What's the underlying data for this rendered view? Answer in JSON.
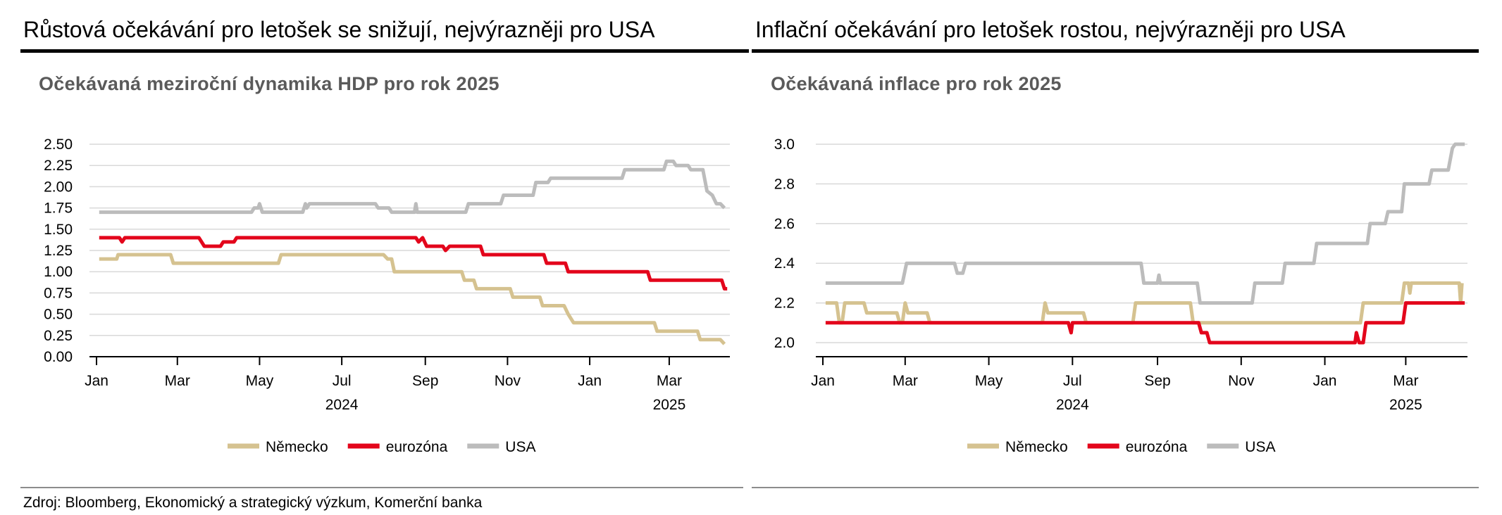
{
  "source": "Zdroj: Bloomberg, Ekonomický a strategický výzkum, Komerční banka",
  "colors": {
    "nemecko": "#d5c290",
    "eurozona": "#e3051b",
    "usa": "#bcbcbc",
    "grid": "#d9d9d9",
    "axis": "#000000"
  },
  "panels": [
    {
      "title": "Růstová očekávání pro letošek se snižují, nejvýrazněji pro USA",
      "subtitle": "Očekávaná meziroční dynamika HDP pro rok 2025"
    },
    {
      "title": "Inflační očekávání pro letošek rostou, nejvýrazněji pro USA",
      "subtitle": "Očekávaná inflace pro rok 2025"
    }
  ],
  "chart_data": [
    {
      "type": "line",
      "title": "Očekávaná meziroční dynamika HDP pro rok 2025",
      "xlabel": "",
      "ylabel": "",
      "x_range": [
        "2024-01-01",
        "2025-04-15"
      ],
      "x_tick_labels": [
        "Jan",
        "Mar",
        "May",
        "Jul",
        "Sep",
        "Nov",
        "Jan",
        "Mar"
      ],
      "year_labels": [
        "2024",
        "2025"
      ],
      "ylim": [
        0,
        2.5
      ],
      "y_ticks": [
        "0.00",
        "0.25",
        "0.50",
        "0.75",
        "1.00",
        "1.25",
        "1.50",
        "1.75",
        "2.00",
        "2.25",
        "2.50"
      ],
      "grid": true,
      "legend_position": "bottom",
      "series": [
        {
          "name": "Německo",
          "color_key": "nemecko",
          "points": [
            [
              "2024-01-03",
              1.15
            ],
            [
              "2024-01-16",
              1.15
            ],
            [
              "2024-01-17",
              1.2
            ],
            [
              "2024-02-25",
              1.2
            ],
            [
              "2024-02-27",
              1.1
            ],
            [
              "2024-05-15",
              1.1
            ],
            [
              "2024-05-17",
              1.2
            ],
            [
              "2024-08-01",
              1.2
            ],
            [
              "2024-08-04",
              1.15
            ],
            [
              "2024-08-07",
              1.15
            ],
            [
              "2024-08-09",
              1.0
            ],
            [
              "2024-09-28",
              1.0
            ],
            [
              "2024-09-30",
              0.9
            ],
            [
              "2024-10-07",
              0.9
            ],
            [
              "2024-10-09",
              0.8
            ],
            [
              "2024-11-03",
              0.8
            ],
            [
              "2024-11-05",
              0.7
            ],
            [
              "2024-11-25",
              0.7
            ],
            [
              "2024-11-27",
              0.6
            ],
            [
              "2024-12-13",
              0.6
            ],
            [
              "2024-12-16",
              0.5
            ],
            [
              "2024-12-20",
              0.4
            ],
            [
              "2025-02-18",
              0.4
            ],
            [
              "2025-02-20",
              0.3
            ],
            [
              "2025-03-22",
              0.3
            ],
            [
              "2025-03-24",
              0.2
            ],
            [
              "2025-04-08",
              0.2
            ],
            [
              "2025-04-11",
              0.15
            ]
          ]
        },
        {
          "name": "eurozóna",
          "color_key": "eurozona",
          "points": [
            [
              "2024-01-03",
              1.4
            ],
            [
              "2024-01-18",
              1.4
            ],
            [
              "2024-01-20",
              1.35
            ],
            [
              "2024-01-22",
              1.4
            ],
            [
              "2024-03-17",
              1.4
            ],
            [
              "2024-03-21",
              1.3
            ],
            [
              "2024-04-02",
              1.3
            ],
            [
              "2024-04-04",
              1.35
            ],
            [
              "2024-04-12",
              1.35
            ],
            [
              "2024-04-14",
              1.4
            ],
            [
              "2024-08-25",
              1.4
            ],
            [
              "2024-08-27",
              1.35
            ],
            [
              "2024-08-30",
              1.4
            ],
            [
              "2024-09-02",
              1.3
            ],
            [
              "2024-09-14",
              1.3
            ],
            [
              "2024-09-16",
              1.25
            ],
            [
              "2024-09-19",
              1.3
            ],
            [
              "2024-10-12",
              1.3
            ],
            [
              "2024-10-14",
              1.2
            ],
            [
              "2024-11-28",
              1.2
            ],
            [
              "2024-11-30",
              1.1
            ],
            [
              "2024-12-14",
              1.1
            ],
            [
              "2024-12-16",
              1.0
            ],
            [
              "2025-02-13",
              1.0
            ],
            [
              "2025-02-15",
              0.9
            ],
            [
              "2025-04-09",
              0.9
            ],
            [
              "2025-04-11",
              0.8
            ],
            [
              "2025-04-13",
              0.8
            ]
          ]
        },
        {
          "name": "USA",
          "color_key": "usa",
          "points": [
            [
              "2024-01-03",
              1.7
            ],
            [
              "2024-04-25",
              1.7
            ],
            [
              "2024-04-27",
              1.75
            ],
            [
              "2024-04-30",
              1.75
            ],
            [
              "2024-05-01",
              1.8
            ],
            [
              "2024-05-03",
              1.7
            ],
            [
              "2024-06-02",
              1.7
            ],
            [
              "2024-06-04",
              1.8
            ],
            [
              "2024-06-05",
              1.75
            ],
            [
              "2024-06-07",
              1.8
            ],
            [
              "2024-07-26",
              1.8
            ],
            [
              "2024-07-28",
              1.75
            ],
            [
              "2024-08-05",
              1.75
            ],
            [
              "2024-08-07",
              1.7
            ],
            [
              "2024-08-24",
              1.7
            ],
            [
              "2024-08-25",
              1.8
            ],
            [
              "2024-08-26",
              1.7
            ],
            [
              "2024-10-01",
              1.7
            ],
            [
              "2024-10-03",
              1.8
            ],
            [
              "2024-10-27",
              1.8
            ],
            [
              "2024-10-29",
              1.9
            ],
            [
              "2024-11-20",
              1.9
            ],
            [
              "2024-11-22",
              2.05
            ],
            [
              "2024-12-01",
              2.05
            ],
            [
              "2024-12-03",
              2.1
            ],
            [
              "2025-01-25",
              2.1
            ],
            [
              "2025-01-27",
              2.2
            ],
            [
              "2025-02-25",
              2.2
            ],
            [
              "2025-02-27",
              2.3
            ],
            [
              "2025-03-04",
              2.3
            ],
            [
              "2025-03-06",
              2.25
            ],
            [
              "2025-03-15",
              2.25
            ],
            [
              "2025-03-17",
              2.2
            ],
            [
              "2025-03-26",
              2.2
            ],
            [
              "2025-03-29",
              1.95
            ],
            [
              "2025-04-02",
              1.9
            ],
            [
              "2025-04-05",
              1.8
            ],
            [
              "2025-04-08",
              1.8
            ],
            [
              "2025-04-11",
              1.75
            ]
          ]
        }
      ]
    },
    {
      "type": "line",
      "title": "Očekávaná inflace pro rok 2025",
      "xlabel": "",
      "ylabel": "",
      "x_range": [
        "2024-01-01",
        "2025-04-15"
      ],
      "x_tick_labels": [
        "Jan",
        "Mar",
        "May",
        "Jul",
        "Sep",
        "Nov",
        "Jan",
        "Mar"
      ],
      "year_labels": [
        "2024",
        "2025"
      ],
      "ylim": [
        1.92,
        3.0
      ],
      "y_ticks": [
        "2.0",
        "2.2",
        "2.4",
        "2.6",
        "2.8",
        "3.0"
      ],
      "grid": true,
      "legend_position": "bottom",
      "series": [
        {
          "name": "Německo",
          "color_key": "nemecko",
          "points": [
            [
              "2024-01-03",
              2.2
            ],
            [
              "2024-01-11",
              2.2
            ],
            [
              "2024-01-13",
              2.1
            ],
            [
              "2024-01-15",
              2.1
            ],
            [
              "2024-01-17",
              2.2
            ],
            [
              "2024-01-31",
              2.2
            ],
            [
              "2024-02-02",
              2.15
            ],
            [
              "2024-02-24",
              2.15
            ],
            [
              "2024-02-26",
              2.1
            ],
            [
              "2024-02-28",
              2.1
            ],
            [
              "2024-03-01",
              2.2
            ],
            [
              "2024-03-03",
              2.15
            ],
            [
              "2024-03-17",
              2.15
            ],
            [
              "2024-03-19",
              2.1
            ],
            [
              "2024-06-09",
              2.1
            ],
            [
              "2024-06-11",
              2.2
            ],
            [
              "2024-06-13",
              2.15
            ],
            [
              "2024-07-09",
              2.15
            ],
            [
              "2024-07-11",
              2.1
            ],
            [
              "2024-08-14",
              2.1
            ],
            [
              "2024-08-16",
              2.2
            ],
            [
              "2024-09-25",
              2.2
            ],
            [
              "2024-09-27",
              2.1
            ],
            [
              "2025-01-27",
              2.1
            ],
            [
              "2025-01-29",
              2.2
            ],
            [
              "2025-02-26",
              2.2
            ],
            [
              "2025-02-28",
              2.3
            ],
            [
              "2025-03-03",
              2.3
            ],
            [
              "2025-03-04",
              2.25
            ],
            [
              "2025-03-05",
              2.3
            ],
            [
              "2025-04-09",
              2.3
            ],
            [
              "2025-04-10",
              2.2
            ],
            [
              "2025-04-11",
              2.3
            ]
          ]
        },
        {
          "name": "eurozóna",
          "color_key": "eurozona",
          "points": [
            [
              "2024-01-03",
              2.1
            ],
            [
              "2024-06-28",
              2.1
            ],
            [
              "2024-06-30",
              2.05
            ],
            [
              "2024-07-01",
              2.1
            ],
            [
              "2024-10-01",
              2.1
            ],
            [
              "2024-10-03",
              2.05
            ],
            [
              "2024-10-07",
              2.05
            ],
            [
              "2024-10-09",
              2.0
            ],
            [
              "2025-01-23",
              2.0
            ],
            [
              "2025-01-24",
              2.05
            ],
            [
              "2025-01-26",
              2.0
            ],
            [
              "2025-01-29",
              2.0
            ],
            [
              "2025-01-31",
              2.1
            ],
            [
              "2025-02-27",
              2.1
            ],
            [
              "2025-03-01",
              2.2
            ],
            [
              "2025-04-13",
              2.2
            ]
          ]
        },
        {
          "name": "USA",
          "color_key": "usa",
          "points": [
            [
              "2024-01-03",
              2.3
            ],
            [
              "2024-02-28",
              2.3
            ],
            [
              "2024-03-02",
              2.4
            ],
            [
              "2024-04-06",
              2.4
            ],
            [
              "2024-04-08",
              2.35
            ],
            [
              "2024-04-12",
              2.35
            ],
            [
              "2024-04-14",
              2.4
            ],
            [
              "2024-08-20",
              2.4
            ],
            [
              "2024-08-22",
              2.3
            ],
            [
              "2024-09-01",
              2.3
            ],
            [
              "2024-09-02",
              2.34
            ],
            [
              "2024-09-03",
              2.3
            ],
            [
              "2024-09-30",
              2.3
            ],
            [
              "2024-10-02",
              2.2
            ],
            [
              "2024-11-09",
              2.2
            ],
            [
              "2024-11-11",
              2.3
            ],
            [
              "2024-12-01",
              2.3
            ],
            [
              "2024-12-03",
              2.4
            ],
            [
              "2024-12-24",
              2.4
            ],
            [
              "2024-12-26",
              2.5
            ],
            [
              "2025-02-01",
              2.5
            ],
            [
              "2025-02-03",
              2.6
            ],
            [
              "2025-02-14",
              2.6
            ],
            [
              "2025-02-16",
              2.66
            ],
            [
              "2025-02-26",
              2.66
            ],
            [
              "2025-02-28",
              2.8
            ],
            [
              "2025-03-18",
              2.8
            ],
            [
              "2025-03-20",
              2.87
            ],
            [
              "2025-04-01",
              2.87
            ],
            [
              "2025-04-04",
              2.98
            ],
            [
              "2025-04-06",
              3.0
            ],
            [
              "2025-04-13",
              3.0
            ]
          ]
        }
      ]
    }
  ]
}
